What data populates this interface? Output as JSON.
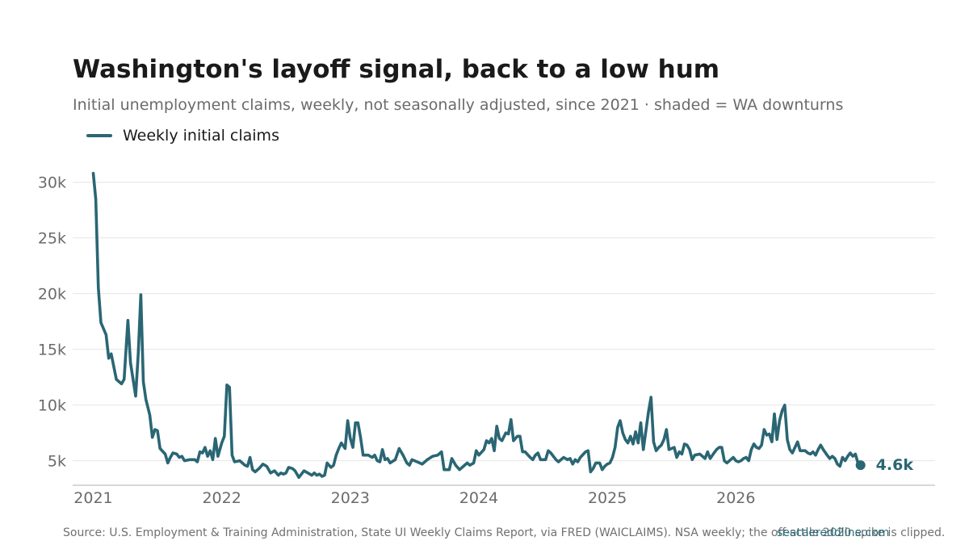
{
  "colors": {
    "line": "#2a6674",
    "grid": "#e4e4e4",
    "axis": "#cccccc",
    "tick_text": "#6b6b6b",
    "credit": "#2a6f7c"
  },
  "chart_data": {
    "type": "line",
    "title": "Washington's layoff signal, back to a low hum",
    "subtitle": "Initial unemployment claims, weekly, not seasonally adjusted, since 2021 · shaded = WA downturns",
    "xlabel": "",
    "ylabel": "",
    "x_ticks": [
      2021,
      2022,
      2023,
      2024,
      2025,
      2026
    ],
    "y_ticks": [
      5000,
      10000,
      15000,
      20000,
      25000,
      30000
    ],
    "y_tick_labels": [
      "5k",
      "10k",
      "15k",
      "20k",
      "25k",
      "30k"
    ],
    "xlim": [
      2020.84,
      2027.55
    ],
    "ylim": [
      2800,
      31500
    ],
    "grid": true,
    "legend_position": "top-left",
    "last_value_label": "4.6k",
    "series": [
      {
        "name": "Weekly initial claims",
        "color": "#2a6674",
        "points": [
          [
            2021.0,
            30800
          ],
          [
            2021.02,
            28500
          ],
          [
            2021.04,
            20500
          ],
          [
            2021.06,
            17400
          ],
          [
            2021.1,
            16300
          ],
          [
            2021.12,
            14200
          ],
          [
            2021.14,
            14600
          ],
          [
            2021.18,
            12300
          ],
          [
            2021.22,
            11900
          ],
          [
            2021.24,
            12300
          ],
          [
            2021.27,
            17600
          ],
          [
            2021.29,
            13800
          ],
          [
            2021.33,
            10800
          ],
          [
            2021.35,
            14600
          ],
          [
            2021.37,
            19900
          ],
          [
            2021.39,
            12100
          ],
          [
            2021.41,
            10500
          ],
          [
            2021.44,
            9100
          ],
          [
            2021.46,
            7100
          ],
          [
            2021.48,
            7800
          ],
          [
            2021.5,
            7700
          ],
          [
            2021.52,
            6100
          ],
          [
            2021.56,
            5600
          ],
          [
            2021.58,
            4800
          ],
          [
            2021.6,
            5300
          ],
          [
            2021.62,
            5700
          ],
          [
            2021.65,
            5600
          ],
          [
            2021.67,
            5300
          ],
          [
            2021.69,
            5400
          ],
          [
            2021.71,
            5000
          ],
          [
            2021.75,
            5100
          ],
          [
            2021.79,
            5100
          ],
          [
            2021.81,
            4900
          ],
          [
            2021.83,
            5800
          ],
          [
            2021.85,
            5700
          ],
          [
            2021.87,
            6200
          ],
          [
            2021.89,
            5400
          ],
          [
            2021.91,
            5900
          ],
          [
            2021.93,
            5100
          ],
          [
            2021.95,
            7000
          ],
          [
            2021.97,
            5400
          ],
          [
            2022.0,
            6600
          ],
          [
            2022.02,
            7200
          ],
          [
            2022.04,
            11800
          ],
          [
            2022.06,
            11600
          ],
          [
            2022.08,
            5500
          ],
          [
            2022.1,
            4900
          ],
          [
            2022.14,
            5000
          ],
          [
            2022.18,
            4600
          ],
          [
            2022.2,
            4500
          ],
          [
            2022.22,
            5300
          ],
          [
            2022.24,
            4200
          ],
          [
            2022.26,
            4000
          ],
          [
            2022.29,
            4300
          ],
          [
            2022.32,
            4700
          ],
          [
            2022.35,
            4500
          ],
          [
            2022.38,
            3900
          ],
          [
            2022.41,
            4100
          ],
          [
            2022.44,
            3700
          ],
          [
            2022.46,
            3900
          ],
          [
            2022.48,
            3800
          ],
          [
            2022.5,
            3900
          ],
          [
            2022.52,
            4400
          ],
          [
            2022.55,
            4300
          ],
          [
            2022.57,
            4100
          ],
          [
            2022.6,
            3500
          ],
          [
            2022.62,
            3800
          ],
          [
            2022.64,
            4100
          ],
          [
            2022.67,
            3900
          ],
          [
            2022.7,
            3700
          ],
          [
            2022.72,
            3900
          ],
          [
            2022.74,
            3700
          ],
          [
            2022.76,
            3800
          ],
          [
            2022.78,
            3600
          ],
          [
            2022.8,
            3700
          ],
          [
            2022.82,
            4800
          ],
          [
            2022.85,
            4400
          ],
          [
            2022.87,
            4600
          ],
          [
            2022.89,
            5500
          ],
          [
            2022.91,
            6100
          ],
          [
            2022.93,
            6600
          ],
          [
            2022.96,
            6100
          ],
          [
            2022.98,
            8600
          ],
          [
            2023.0,
            7000
          ],
          [
            2023.02,
            6200
          ],
          [
            2023.04,
            8400
          ],
          [
            2023.06,
            8400
          ],
          [
            2023.08,
            7100
          ],
          [
            2023.1,
            5500
          ],
          [
            2023.14,
            5500
          ],
          [
            2023.17,
            5300
          ],
          [
            2023.19,
            5500
          ],
          [
            2023.21,
            5000
          ],
          [
            2023.23,
            4900
          ],
          [
            2023.25,
            6000
          ],
          [
            2023.27,
            5100
          ],
          [
            2023.29,
            5200
          ],
          [
            2023.31,
            4800
          ],
          [
            2023.35,
            5100
          ],
          [
            2023.38,
            6100
          ],
          [
            2023.41,
            5500
          ],
          [
            2023.44,
            4800
          ],
          [
            2023.46,
            4600
          ],
          [
            2023.48,
            5100
          ],
          [
            2023.52,
            4900
          ],
          [
            2023.56,
            4700
          ],
          [
            2023.6,
            5100
          ],
          [
            2023.64,
            5400
          ],
          [
            2023.68,
            5500
          ],
          [
            2023.71,
            5800
          ],
          [
            2023.73,
            4200
          ],
          [
            2023.77,
            4200
          ],
          [
            2023.79,
            5200
          ],
          [
            2023.82,
            4600
          ],
          [
            2023.85,
            4200
          ],
          [
            2023.88,
            4500
          ],
          [
            2023.91,
            4800
          ],
          [
            2023.93,
            4600
          ],
          [
            2023.96,
            4800
          ],
          [
            2023.98,
            5900
          ],
          [
            2024.0,
            5500
          ],
          [
            2024.04,
            6000
          ],
          [
            2024.06,
            6800
          ],
          [
            2024.08,
            6600
          ],
          [
            2024.1,
            7000
          ],
          [
            2024.12,
            5900
          ],
          [
            2024.14,
            8100
          ],
          [
            2024.16,
            7000
          ],
          [
            2024.18,
            6800
          ],
          [
            2024.21,
            7500
          ],
          [
            2024.23,
            7400
          ],
          [
            2024.25,
            8700
          ],
          [
            2024.27,
            6800
          ],
          [
            2024.3,
            7200
          ],
          [
            2024.32,
            7200
          ],
          [
            2024.34,
            5800
          ],
          [
            2024.36,
            5800
          ],
          [
            2024.4,
            5300
          ],
          [
            2024.42,
            5100
          ],
          [
            2024.44,
            5500
          ],
          [
            2024.46,
            5700
          ],
          [
            2024.48,
            5100
          ],
          [
            2024.52,
            5100
          ],
          [
            2024.54,
            5900
          ],
          [
            2024.56,
            5700
          ],
          [
            2024.6,
            5100
          ],
          [
            2024.62,
            4900
          ],
          [
            2024.66,
            5300
          ],
          [
            2024.69,
            5100
          ],
          [
            2024.71,
            5200
          ],
          [
            2024.73,
            4700
          ],
          [
            2024.75,
            5100
          ],
          [
            2024.77,
            4900
          ],
          [
            2024.79,
            5300
          ],
          [
            2024.83,
            5800
          ],
          [
            2024.85,
            5900
          ],
          [
            2024.87,
            4000
          ],
          [
            2024.89,
            4300
          ],
          [
            2024.91,
            4800
          ],
          [
            2024.94,
            4800
          ],
          [
            2024.96,
            4200
          ],
          [
            2024.98,
            4500
          ],
          [
            2025.0,
            4700
          ],
          [
            2025.02,
            4800
          ],
          [
            2025.04,
            5300
          ],
          [
            2025.06,
            6200
          ],
          [
            2025.08,
            8000
          ],
          [
            2025.1,
            8600
          ],
          [
            2025.12,
            7500
          ],
          [
            2025.14,
            6900
          ],
          [
            2025.16,
            6600
          ],
          [
            2025.18,
            7200
          ],
          [
            2025.2,
            6500
          ],
          [
            2025.22,
            7600
          ],
          [
            2025.24,
            6600
          ],
          [
            2025.26,
            8400
          ],
          [
            2025.28,
            6000
          ],
          [
            2025.3,
            7700
          ],
          [
            2025.32,
            9400
          ],
          [
            2025.34,
            10700
          ],
          [
            2025.36,
            6700
          ],
          [
            2025.38,
            5900
          ],
          [
            2025.4,
            6200
          ],
          [
            2025.42,
            6400
          ],
          [
            2025.44,
            6900
          ],
          [
            2025.46,
            7800
          ],
          [
            2025.48,
            6000
          ],
          [
            2025.52,
            6200
          ],
          [
            2025.54,
            5300
          ],
          [
            2025.56,
            5800
          ],
          [
            2025.58,
            5600
          ],
          [
            2025.6,
            6500
          ],
          [
            2025.62,
            6400
          ],
          [
            2025.64,
            6000
          ],
          [
            2025.66,
            5100
          ],
          [
            2025.68,
            5500
          ],
          [
            2025.72,
            5600
          ],
          [
            2025.74,
            5400
          ],
          [
            2025.76,
            5200
          ],
          [
            2025.78,
            5800
          ],
          [
            2025.8,
            5200
          ],
          [
            2025.83,
            5700
          ],
          [
            2025.85,
            6000
          ],
          [
            2025.87,
            6200
          ],
          [
            2025.89,
            6200
          ],
          [
            2025.91,
            5000
          ],
          [
            2025.93,
            4800
          ],
          [
            2025.96,
            5100
          ],
          [
            2025.98,
            5300
          ],
          [
            2026.0,
            5000
          ],
          [
            2026.02,
            4900
          ],
          [
            2026.04,
            5000
          ],
          [
            2026.06,
            5200
          ],
          [
            2026.08,
            5300
          ],
          [
            2026.1,
            5000
          ],
          [
            2026.12,
            6000
          ],
          [
            2026.14,
            6500
          ],
          [
            2026.16,
            6200
          ],
          [
            2026.18,
            6100
          ],
          [
            2026.2,
            6400
          ],
          [
            2026.22,
            7800
          ],
          [
            2026.24,
            7300
          ],
          [
            2026.26,
            7400
          ],
          [
            2026.28,
            6700
          ],
          [
            2026.3,
            9200
          ],
          [
            2026.32,
            6900
          ],
          [
            2026.34,
            8600
          ],
          [
            2026.36,
            9500
          ],
          [
            2026.38,
            10000
          ],
          [
            2026.4,
            6900
          ],
          [
            2026.42,
            6000
          ],
          [
            2026.44,
            5700
          ],
          [
            2026.46,
            6200
          ],
          [
            2026.48,
            6700
          ],
          [
            2026.5,
            5900
          ],
          [
            2026.54,
            5900
          ],
          [
            2026.56,
            5700
          ],
          [
            2026.58,
            5600
          ],
          [
            2026.6,
            5800
          ],
          [
            2026.62,
            5500
          ],
          [
            2026.64,
            6000
          ],
          [
            2026.66,
            6400
          ],
          [
            2026.68,
            6000
          ],
          [
            2026.71,
            5500
          ],
          [
            2026.73,
            5200
          ],
          [
            2026.75,
            5400
          ],
          [
            2026.77,
            5200
          ],
          [
            2026.79,
            4700
          ],
          [
            2026.81,
            4500
          ],
          [
            2026.83,
            5300
          ],
          [
            2026.85,
            5000
          ],
          [
            2026.87,
            5400
          ],
          [
            2026.89,
            5700
          ],
          [
            2026.91,
            5400
          ],
          [
            2026.93,
            5600
          ],
          [
            2026.95,
            4800
          ],
          [
            2026.97,
            4600
          ]
        ]
      }
    ]
  },
  "footer": {
    "source": "Source: U.S. Employment & Training Administration, State UI Weekly Claims Report, via FRED (WAICLAIMS). NSA weekly; the off-scale 2020 spike is clipped.",
    "credit": "seattlereddline.com"
  }
}
